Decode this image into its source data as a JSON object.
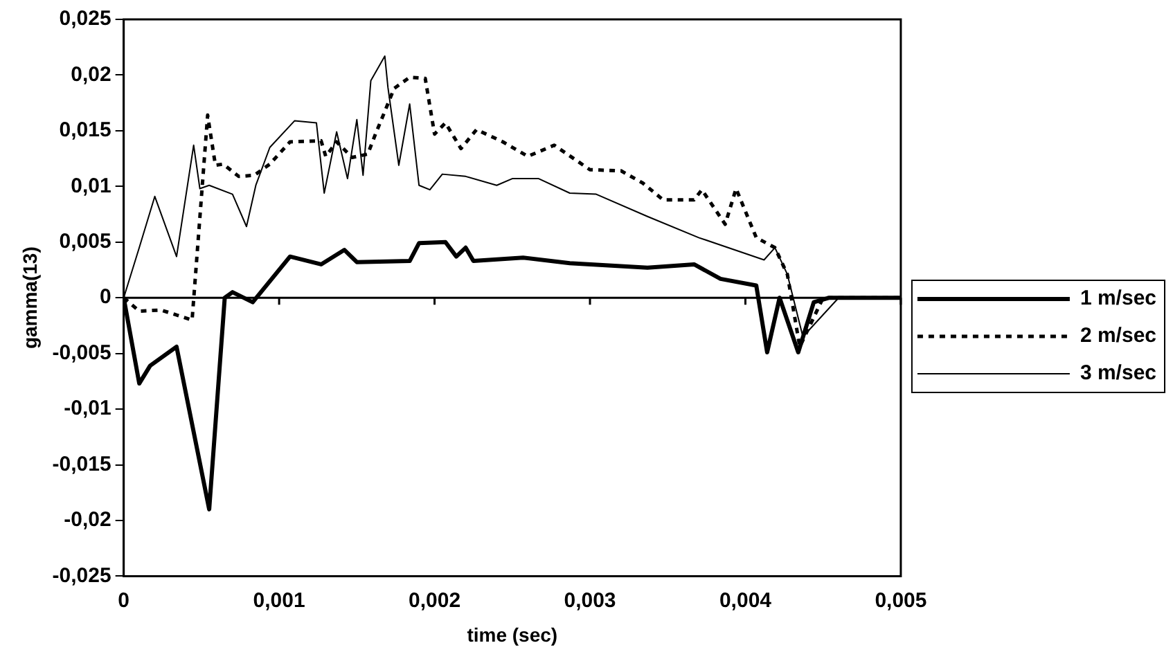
{
  "chart_data": {
    "type": "line",
    "xlabel": "time (sec)",
    "ylabel": "gamma(13)",
    "xlim": [
      0,
      0.005
    ],
    "xticks": [
      0,
      {
        "value": 0.001,
        "label": "0,001"
      },
      {
        "value": 0.002,
        "label": "0,002"
      },
      {
        "value": 0.003,
        "label": "0,003"
      },
      {
        "value": 0.004,
        "label": "0,004"
      },
      {
        "value": 0.005,
        "label": "0,005"
      }
    ],
    "ylim": [
      -0.025,
      0.025
    ],
    "yticks": [
      {
        "value": -0.025,
        "label": "-0,025"
      },
      {
        "value": -0.02,
        "label": "-0,02"
      },
      {
        "value": -0.015,
        "label": "-0,015"
      },
      {
        "value": -0.01,
        "label": "-0,01"
      },
      {
        "value": -0.005,
        "label": "-0,005"
      },
      0,
      {
        "value": 0.005,
        "label": "0,005"
      },
      {
        "value": 0.01,
        "label": "0,01"
      },
      {
        "value": 0.015,
        "label": "0,015"
      },
      {
        "value": 0.02,
        "label": "0,02"
      },
      {
        "value": 0.025,
        "label": "0,025"
      }
    ],
    "grid": false,
    "ref_lines": [
      {
        "axis": "y",
        "value": 0,
        "color": "#000000"
      }
    ],
    "legend": "right",
    "marker": "none",
    "series": [
      {
        "name": "1 m/sec",
        "color": "#000000",
        "line_style": "solid",
        "x": [
          0,
          0.0001,
          0.00017,
          0.00034,
          0.00055,
          0.00065,
          0.0007,
          0.00083,
          0.00107,
          0.00127,
          0.00142,
          0.0015,
          0.00184,
          0.0019,
          0.00207,
          0.00214,
          0.0022,
          0.00225,
          0.00257,
          0.00287,
          0.00337,
          0.00367,
          0.00384,
          0.00407,
          0.00414,
          0.00422,
          0.00434,
          0.00444,
          0.00454,
          0.005
        ],
        "values": [
          0,
          -0.0077,
          -0.0061,
          -0.0044,
          -0.019,
          0,
          0.0005,
          -0.0004,
          0.0037,
          0.003,
          0.0043,
          0.0032,
          0.0033,
          0.0049,
          0.005,
          0.0037,
          0.0045,
          0.0033,
          0.0036,
          0.0031,
          0.0027,
          0.003,
          0.0017,
          0.0011,
          -0.0049,
          0,
          -0.0049,
          -0.0004,
          0,
          0
        ]
      },
      {
        "name": "2 m/sec",
        "color": "#000000",
        "line_style": "dotted",
        "x": [
          0,
          0.0001,
          0.00024,
          0.00044,
          0.00054,
          0.00059,
          0.00064,
          0.00074,
          0.00084,
          0.00094,
          0.00107,
          0.00127,
          0.0013,
          0.00137,
          0.00147,
          0.00157,
          0.00162,
          0.00167,
          0.00174,
          0.00184,
          0.00194,
          0.002,
          0.00207,
          0.00217,
          0.00227,
          0.00244,
          0.0026,
          0.00277,
          0.003,
          0.0032,
          0.00334,
          0.00347,
          0.00367,
          0.00372,
          0.00387,
          0.00394,
          0.00407,
          0.00419,
          0.00427,
          0.00435,
          0.0045,
          0.005
        ],
        "values": [
          0,
          -0.0012,
          -0.0011,
          -0.002,
          0.0164,
          0.0119,
          0.012,
          0.0109,
          0.011,
          0.012,
          0.014,
          0.0141,
          0.0127,
          0.014,
          0.0126,
          0.0129,
          0.0147,
          0.0164,
          0.0188,
          0.0198,
          0.0197,
          0.0147,
          0.0157,
          0.0134,
          0.0151,
          0.014,
          0.0127,
          0.0137,
          0.0115,
          0.0114,
          0.0103,
          0.0088,
          0.0088,
          0.0097,
          0.0066,
          0.0098,
          0.0054,
          0.0045,
          0.0021,
          -0.0044,
          0,
          0
        ]
      },
      {
        "name": "3 m/sec",
        "color": "#000000",
        "line_style": "solid",
        "x": [
          0,
          0.0001,
          0.0002,
          0.00034,
          0.00045,
          0.00049,
          0.00055,
          0.0007,
          0.00079,
          0.00085,
          0.00094,
          0.0011,
          0.00124,
          0.00129,
          0.00137,
          0.00144,
          0.0015,
          0.00154,
          0.00159,
          0.00168,
          0.0017,
          0.00177,
          0.00184,
          0.0019,
          0.00197,
          0.00205,
          0.0022,
          0.0024,
          0.0025,
          0.00267,
          0.00287,
          0.00304,
          0.00337,
          0.0037,
          0.00412,
          0.00419,
          0.00427,
          0.00437,
          0.0046,
          0.005
        ],
        "values": [
          0,
          0.0045,
          0.0091,
          0.0037,
          0.0137,
          0.0098,
          0.0101,
          0.0093,
          0.0064,
          0.0101,
          0.0135,
          0.0159,
          0.0157,
          0.0094,
          0.0149,
          0.0107,
          0.016,
          0.011,
          0.0195,
          0.0217,
          0.0189,
          0.0119,
          0.0174,
          0.0101,
          0.0097,
          0.0111,
          0.0109,
          0.0101,
          0.0107,
          0.0107,
          0.0094,
          0.0093,
          0.0073,
          0.0054,
          0.0034,
          0.0045,
          0.0021,
          -0.0035,
          0,
          0
        ]
      }
    ]
  }
}
